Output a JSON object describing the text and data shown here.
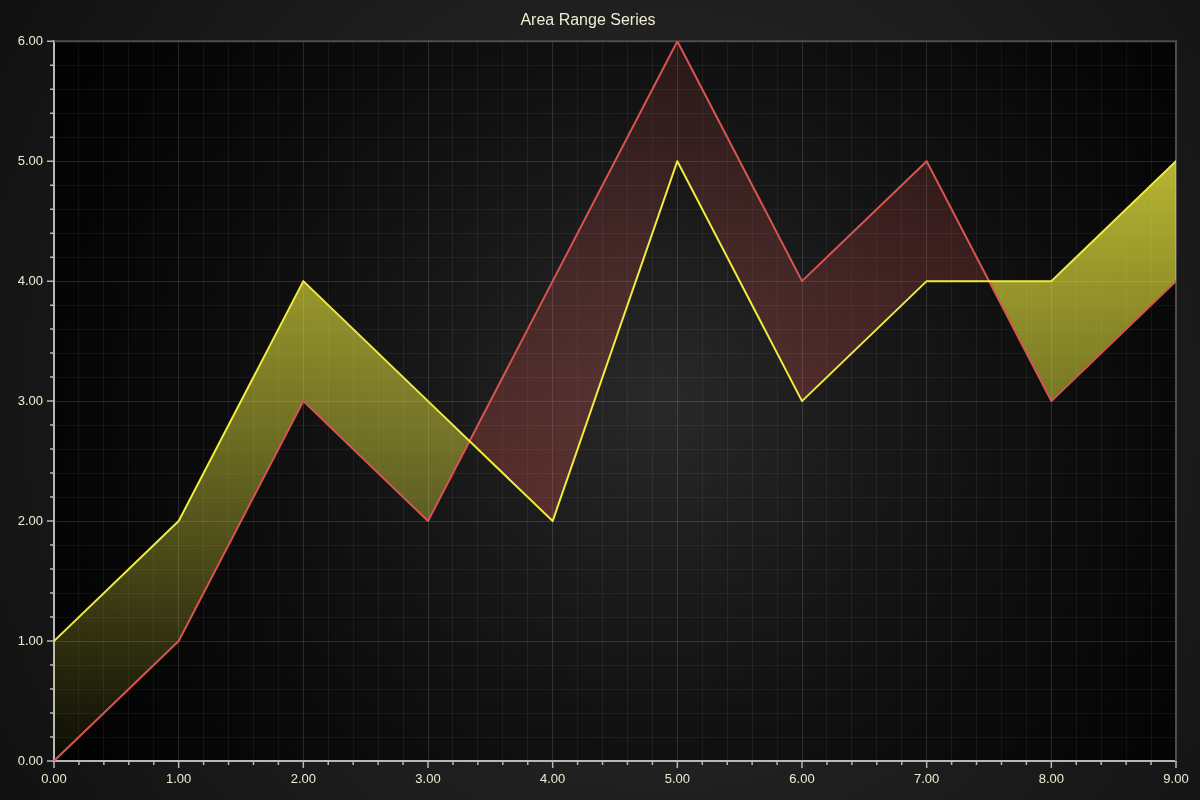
{
  "chart_data": {
    "type": "line",
    "title": "Area Range Series",
    "x": [
      0,
      1,
      2,
      3,
      4,
      5,
      6,
      7,
      8,
      9
    ],
    "series": [
      {
        "color": "#eeec3e",
        "values": [
          1,
          2,
          4,
          3,
          2,
          5,
          3,
          4,
          4,
          5
        ],
        "lower": [
          0,
          1,
          3,
          2,
          4,
          6,
          4,
          5,
          3,
          4
        ],
        "upper": [
          1,
          2,
          4,
          3,
          2,
          5,
          3,
          4,
          4,
          5
        ]
      },
      {
        "color": "#d85450",
        "values": [
          0,
          1,
          3,
          2,
          4,
          6,
          4,
          5,
          3,
          4
        ]
      }
    ],
    "xlim": [
      0,
      9
    ],
    "ylim": [
      0,
      6
    ],
    "xticks": [
      {
        "value": 0,
        "label": "0.00"
      },
      {
        "value": 0.2,
        "label": null
      },
      {
        "value": 0.4,
        "label": null
      },
      {
        "value": 0.6,
        "label": null
      },
      {
        "value": 0.8,
        "label": null
      },
      {
        "value": 1,
        "label": "1.00"
      },
      {
        "value": 1.2,
        "label": null
      },
      {
        "value": 1.4,
        "label": null
      },
      {
        "value": 1.6,
        "label": null
      },
      {
        "value": 1.8,
        "label": null
      },
      {
        "value": 2,
        "label": "2.00"
      },
      {
        "value": 2.2,
        "label": null
      },
      {
        "value": 2.4,
        "label": null
      },
      {
        "value": 2.6,
        "label": null
      },
      {
        "value": 2.8,
        "label": null
      },
      {
        "value": 3,
        "label": "3.00"
      },
      {
        "value": 3.2,
        "label": null
      },
      {
        "value": 3.4,
        "label": null
      },
      {
        "value": 3.6,
        "label": null
      },
      {
        "value": 3.8,
        "label": null
      },
      {
        "value": 4,
        "label": "4.00"
      },
      {
        "value": 4.2,
        "label": null
      },
      {
        "value": 4.4,
        "label": null
      },
      {
        "value": 4.6,
        "label": null
      },
      {
        "value": 4.8,
        "label": null
      },
      {
        "value": 5,
        "label": "5.00"
      },
      {
        "value": 5.2,
        "label": null
      },
      {
        "value": 5.4,
        "label": null
      },
      {
        "value": 5.6,
        "label": null
      },
      {
        "value": 5.8,
        "label": null
      },
      {
        "value": 6,
        "label": "6.00"
      },
      {
        "value": 6.2,
        "label": null
      },
      {
        "value": 6.4,
        "label": null
      },
      {
        "value": 6.6,
        "label": null
      },
      {
        "value": 6.8,
        "label": null
      },
      {
        "value": 7,
        "label": "7.00"
      },
      {
        "value": 7.2,
        "label": null
      },
      {
        "value": 7.4,
        "label": null
      },
      {
        "value": 7.6,
        "label": null
      },
      {
        "value": 7.8,
        "label": null
      },
      {
        "value": 8,
        "label": "8.00"
      },
      {
        "value": 8.2,
        "label": null
      },
      {
        "value": 8.4,
        "label": null
      },
      {
        "value": 8.6,
        "label": null
      },
      {
        "value": 8.8,
        "label": null
      },
      {
        "value": 9,
        "label": "9.00"
      }
    ],
    "yticks": [
      {
        "value": 0,
        "label": "0.00"
      },
      {
        "value": 0.2,
        "label": null
      },
      {
        "value": 0.4,
        "label": null
      },
      {
        "value": 0.6,
        "label": null
      },
      {
        "value": 0.8,
        "label": null
      },
      {
        "value": 1,
        "label": "1.00"
      },
      {
        "value": 1.2,
        "label": null
      },
      {
        "value": 1.4,
        "label": null
      },
      {
        "value": 1.6,
        "label": null
      },
      {
        "value": 1.8,
        "label": null
      },
      {
        "value": 2,
        "label": "2.00"
      },
      {
        "value": 2.2,
        "label": null
      },
      {
        "value": 2.4,
        "label": null
      },
      {
        "value": 2.6,
        "label": null
      },
      {
        "value": 2.8,
        "label": null
      },
      {
        "value": 3,
        "label": "3.00"
      },
      {
        "value": 3.2,
        "label": null
      },
      {
        "value": 3.4,
        "label": null
      },
      {
        "value": 3.6,
        "label": null
      },
      {
        "value": 3.8,
        "label": null
      },
      {
        "value": 4,
        "label": "4.00"
      },
      {
        "value": 4.2,
        "label": null
      },
      {
        "value": 4.4,
        "label": null
      },
      {
        "value": 4.6,
        "label": null
      },
      {
        "value": 4.8,
        "label": null
      },
      {
        "value": 5,
        "label": "5.00"
      },
      {
        "value": 5.2,
        "label": null
      },
      {
        "value": 5.4,
        "label": null
      },
      {
        "value": 5.6,
        "label": null
      },
      {
        "value": 5.8,
        "label": null
      },
      {
        "value": 6,
        "label": "6.00"
      }
    ],
    "grid": true
  }
}
